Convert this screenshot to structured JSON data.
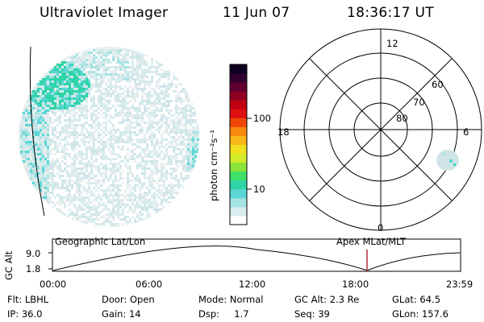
{
  "header": {
    "instrument": "Ultraviolet Imager",
    "date": "11 Jun 07",
    "time": "18:36:17 UT"
  },
  "colorbar": {
    "unit_label": "photon cm⁻²s⁻¹",
    "ticks": [
      "100",
      "10"
    ],
    "scale": "log",
    "colors": [
      "#ffffff",
      "#d9ecee",
      "#a5e3e3",
      "#5cd6d6",
      "#2fd4a8",
      "#3fe06a",
      "#8ae43a",
      "#d4ec2a",
      "#f0e020",
      "#f8b818",
      "#f88810",
      "#f04808",
      "#e01010",
      "#c00010",
      "#900020",
      "#600030",
      "#300030",
      "#100020"
    ]
  },
  "polar_plot": {
    "mlt_labels": {
      "top": "12",
      "left": "18",
      "right": "6",
      "bottom": "0"
    },
    "lat_labels": [
      "60",
      "70",
      "80"
    ],
    "grid": "on"
  },
  "timeline": {
    "ylabel": "GC Alt",
    "yticks": [
      "9.0",
      "1.8"
    ],
    "left_caption": "Geographic Lat/Lon",
    "right_caption": "Apex  MLat/MLT",
    "xticks": [
      "00:00",
      "06:00",
      "12:00",
      "18:00",
      "23:59"
    ],
    "marker_time": "18:36",
    "marker_color": "#b03040"
  },
  "footer": {
    "row1": [
      "Flt: LBHL",
      "Door: Open",
      "Mode: Normal",
      "GC Alt: 2.3 Re",
      "GLat:  64.5"
    ],
    "row2": [
      "IP: 36.0",
      "Gain: 14",
      "Dsp:     1.7",
      "Seq: 39",
      "GLon: 157.6"
    ]
  }
}
